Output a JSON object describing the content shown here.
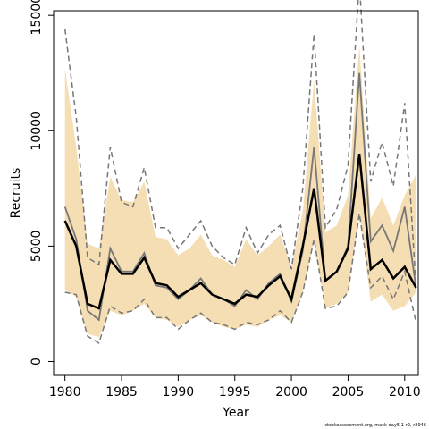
{
  "chart_data": {
    "type": "line",
    "xlabel": "Year",
    "ylabel": "Recruits",
    "xlim": [
      1979.0,
      2011.2
    ],
    "ylim": [
      -600,
      15200
    ],
    "x_ticks": [
      1980,
      1985,
      1990,
      1995,
      2000,
      2005,
      2010
    ],
    "y_ticks": [
      0,
      5000,
      10000,
      15000
    ],
    "credit": "stockassessment.org, mack-day5-1-r2, r2946",
    "colors": {
      "band": "#f5deb3",
      "median": "#000000",
      "gray_line": "#777777",
      "dashed": "#777777"
    },
    "x": [
      1980,
      1981,
      1982,
      1983,
      1984,
      1985,
      1986,
      1987,
      1988,
      1989,
      1990,
      1991,
      1992,
      1993,
      1994,
      1995,
      1996,
      1997,
      1998,
      1999,
      2000,
      2001,
      2002,
      2003,
      2004,
      2005,
      2006,
      2007,
      2008,
      2009,
      2010,
      2011
    ],
    "series": [
      {
        "role": "band-upper",
        "values": [
          12700,
          9300,
          5100,
          4900,
          8000,
          7000,
          6900,
          7800,
          5400,
          5300,
          4600,
          4900,
          5500,
          4600,
          4400,
          4100,
          5300,
          4600,
          5000,
          5500,
          4100,
          6500,
          12200,
          5600,
          5900,
          7200,
          13700,
          6200,
          7100,
          5900,
          7200,
          8100
        ]
      },
      {
        "role": "band-lower",
        "values": [
          3100,
          2800,
          1200,
          1050,
          2200,
          2000,
          2200,
          2500,
          1900,
          1800,
          1500,
          1800,
          2000,
          1700,
          1500,
          1400,
          1600,
          1500,
          1800,
          2000,
          1700,
          3000,
          5200,
          2300,
          2500,
          3000,
          6500,
          2600,
          2900,
          2200,
          2400,
          3000
        ]
      },
      {
        "role": "dashed-upper",
        "values": [
          14400,
          10600,
          4500,
          4200,
          9300,
          6900,
          6700,
          8400,
          5800,
          5800,
          4900,
          5500,
          6100,
          5000,
          4500,
          4200,
          5800,
          4700,
          5500,
          5900,
          4000,
          7500,
          14200,
          5800,
          6600,
          8500,
          16500,
          7800,
          9500,
          7600,
          11200,
          3200
        ]
      },
      {
        "role": "dashed-lower",
        "values": [
          3000,
          2900,
          1100,
          800,
          2400,
          2100,
          2200,
          2700,
          1900,
          1900,
          1400,
          1800,
          2100,
          1700,
          1600,
          1400,
          1700,
          1600,
          1800,
          2200,
          1700,
          3000,
          5300,
          2300,
          2400,
          3000,
          6400,
          3200,
          3700,
          2700,
          3900,
          1700
        ]
      },
      {
        "role": "gray-line",
        "values": [
          6700,
          5300,
          2200,
          1800,
          4900,
          3900,
          3900,
          4700,
          3300,
          3200,
          2700,
          3100,
          3600,
          2900,
          2700,
          2400,
          3100,
          2700,
          3400,
          3800,
          2600,
          4800,
          9300,
          3500,
          3900,
          5000,
          12500,
          5200,
          5900,
          4800,
          6700,
          3200
        ]
      },
      {
        "role": "median-line",
        "values": [
          6100,
          5000,
          2500,
          2300,
          4400,
          3800,
          3800,
          4500,
          3400,
          3300,
          2800,
          3100,
          3400,
          2900,
          2700,
          2500,
          2900,
          2800,
          3300,
          3700,
          2700,
          5000,
          7500,
          3500,
          3900,
          4900,
          9000,
          4000,
          4400,
          3600,
          4100,
          3200
        ]
      }
    ]
  }
}
